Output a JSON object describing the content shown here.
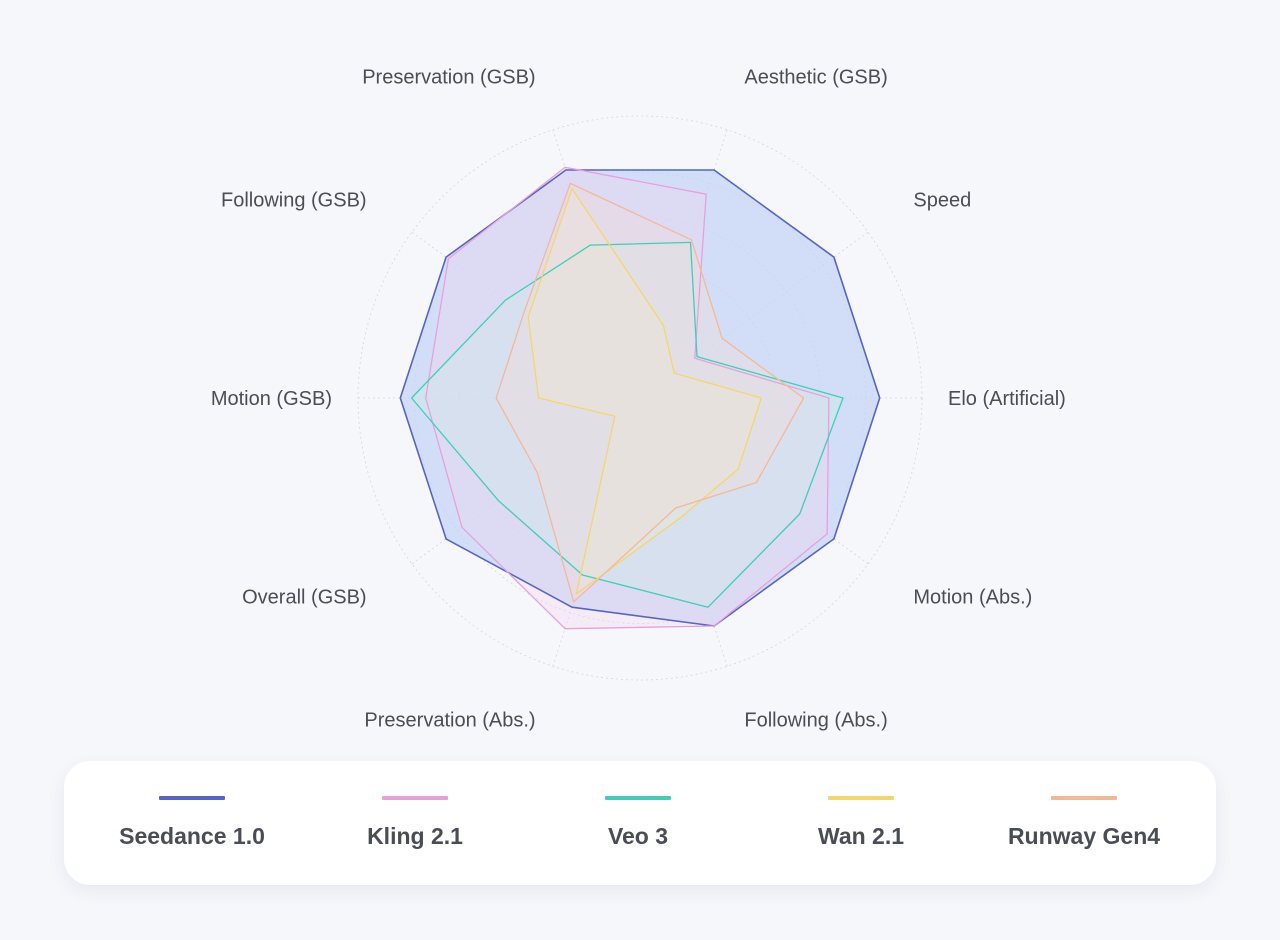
{
  "chart_data": {
    "type": "radar",
    "axes": [
      "Elo (Artificial)",
      "Speed",
      "Aesthetic (GSB)",
      "Preservation (GSB)",
      "Following (GSB)",
      "Motion (GSB)",
      "Overall (GSB)",
      "Preservation (Abs.)",
      "Following (Abs.)",
      "Motion (Abs.)"
    ],
    "range": [
      0,
      1
    ],
    "grid": true,
    "legend_position": "bottom",
    "series": [
      {
        "name": "Seedance 1.0",
        "color": "#5564c8",
        "fill": "#c5d6f5",
        "fill_opacity": 0.75,
        "values": [
          0.85,
          0.85,
          0.85,
          0.85,
          0.85,
          0.85,
          0.85,
          0.78,
          0.85,
          0.85
        ]
      },
      {
        "name": "Kling 2.1",
        "color": "#e8a0dc",
        "fill": "#f4d4ee",
        "fill_opacity": 0.35,
        "values": [
          0.67,
          0.24,
          0.76,
          0.86,
          0.84,
          0.76,
          0.78,
          0.86,
          0.85,
          0.82
        ]
      },
      {
        "name": "Veo 3",
        "color": "#3ecfb8",
        "fill": "#c9efe6",
        "fill_opacity": 0.3,
        "values": [
          0.72,
          0.25,
          0.58,
          0.57,
          0.59,
          0.81,
          0.62,
          0.66,
          0.78,
          0.7
        ]
      },
      {
        "name": "Wan 2.1",
        "color": "#f5d66a",
        "fill": "#f9ecc5",
        "fill_opacity": 0.25,
        "values": [
          0.43,
          0.15,
          0.27,
          0.78,
          0.49,
          0.36,
          0.11,
          0.73,
          0.45,
          0.43
        ]
      },
      {
        "name": "Runway Gen4",
        "color": "#f3b997",
        "fill": "#f8ddce",
        "fill_opacity": 0.3,
        "values": [
          0.58,
          0.36,
          0.59,
          0.8,
          0.51,
          0.51,
          0.45,
          0.76,
          0.41,
          0.51
        ]
      }
    ]
  }
}
